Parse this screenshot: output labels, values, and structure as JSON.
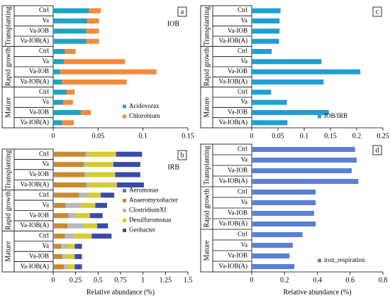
{
  "chart_data": [
    {
      "type": "bar",
      "stacked": true,
      "panel_label": "a",
      "annotation": "IOB",
      "groups": [
        {
          "name": "Transplanting",
          "categories": [
            "Ctrl",
            "Va",
            "Va-IOB",
            "Va-IOB(A)"
          ]
        },
        {
          "name": "Rapid growth",
          "categories": [
            "Ctrl",
            "Va",
            "Va-IOB",
            "Va-IOB(A)"
          ]
        },
        {
          "name": "Mature",
          "categories": [
            "Ctrl",
            "Va",
            "Va-IOB",
            "Va-IOB(A)"
          ]
        }
      ],
      "series": [
        {
          "name": "Acidovorax",
          "color": "#1fa2c4",
          "values": [
            0.04,
            0.038,
            0.037,
            0.037,
            0.013,
            0.012,
            0.008,
            0.01,
            0.015,
            0.011,
            0.031,
            0.01
          ]
        },
        {
          "name": "Chlorobium",
          "color": "#f58a3a",
          "values": [
            0.013,
            0.013,
            0.014,
            0.014,
            0.012,
            0.068,
            0.107,
            0.072,
            0.009,
            0.011,
            0.011,
            0.013
          ]
        }
      ],
      "xlim": [
        0,
        0.15
      ],
      "xticks": [
        0,
        0.05,
        0.1,
        0.15
      ],
      "legend": "lower right"
    },
    {
      "type": "bar",
      "stacked": true,
      "panel_label": "b",
      "annotation": "IRB",
      "x_label": "Relative abundance (%)",
      "groups": [
        {
          "name": "Transplanting",
          "categories": [
            "Ctrl",
            "Va",
            "Va-IOB",
            "Va-IOB(A)"
          ]
        },
        {
          "name": "Rapid growth",
          "categories": [
            "Ctrl",
            "Va",
            "Va-IOB",
            "Va-IOB(A)"
          ]
        },
        {
          "name": "Mature",
          "categories": [
            "Ctrl",
            "Va",
            "Va-IOB",
            "Va-IOB(A)"
          ]
        }
      ],
      "series": [
        {
          "name": "Aeromonas",
          "color": "#4d7fd0",
          "values": [
            0.01,
            0.01,
            0.01,
            0.01,
            0.01,
            0.01,
            0.01,
            0.01,
            0.01,
            0.01,
            0.01,
            0.01
          ]
        },
        {
          "name": "Anaeromyxobacter",
          "color": "#c98a2e",
          "values": [
            0.35,
            0.33,
            0.34,
            0.36,
            0.28,
            0.13,
            0.16,
            0.15,
            0.12,
            0.08,
            0.09,
            0.11
          ]
        },
        {
          "name": "ClostridiumXI",
          "color": "#b8b8b8",
          "values": [
            0.03,
            0.03,
            0.03,
            0.04,
            0.1,
            0.17,
            0.08,
            0.18,
            0.1,
            0.06,
            0.04,
            0.04
          ]
        },
        {
          "name": "Desulfuromonas",
          "color": "#d6cc2c",
          "values": [
            0.31,
            0.3,
            0.31,
            0.3,
            0.14,
            0.16,
            0.16,
            0.15,
            0.2,
            0.09,
            0.1,
            0.08
          ]
        },
        {
          "name": "Geobacter",
          "color": "#3a4aaa",
          "values": [
            0.29,
            0.3,
            0.28,
            0.3,
            0.15,
            0.13,
            0.14,
            0.12,
            0.22,
            0.08,
            0.08,
            0.08
          ]
        }
      ],
      "xlim": [
        0,
        1.5
      ],
      "xticks": [
        0,
        0.25,
        0.5,
        0.75,
        1,
        1.25,
        1.5
      ],
      "legend": "center right"
    },
    {
      "type": "bar",
      "stacked": false,
      "panel_label": "c",
      "groups": [
        {
          "name": "Transplanting",
          "categories": [
            "Ctrl",
            "Va",
            "Va-IOB",
            "Va-IOB(A)"
          ]
        },
        {
          "name": "Rapid growth",
          "categories": [
            "Ctrl",
            "Va",
            "Va-IOB",
            "Va-IOB(A)"
          ]
        },
        {
          "name": "Mature",
          "categories": [
            "Ctrl",
            "Va",
            "Va-IOB",
            "Va-IOB(A)"
          ]
        }
      ],
      "series": [
        {
          "name": "IOB/IRB",
          "color": "#1f9fd0",
          "values": [
            0.055,
            0.053,
            0.053,
            0.052,
            0.038,
            0.133,
            0.207,
            0.137,
            0.037,
            0.067,
            0.147,
            0.068
          ]
        }
      ],
      "xlim": [
        0,
        0.25
      ],
      "xticks": [
        0,
        0.05,
        0.1,
        0.15,
        0.2,
        0.25
      ],
      "legend": "lower right"
    },
    {
      "type": "bar",
      "stacked": false,
      "panel_label": "d",
      "x_label": "Relative abundance (%)",
      "groups": [
        {
          "name": "Transplanting",
          "categories": [
            "Ctrl",
            "Va",
            "Va-IOB",
            "Va-IOB(A)"
          ]
        },
        {
          "name": "Rapid growth",
          "categories": [
            "Ctrl",
            "Va",
            "Va-IOB",
            "Va-IOB(A)"
          ]
        },
        {
          "name": "Mature",
          "categories": [
            "Ctrl",
            "Va",
            "Va-IOB",
            "Va-IOB(A)"
          ]
        }
      ],
      "series": [
        {
          "name": "iron_respiration",
          "color": "#5b7fd6",
          "values": [
            0.63,
            0.64,
            0.61,
            0.65,
            0.39,
            0.39,
            0.38,
            0.39,
            0.31,
            0.25,
            0.23,
            0.26
          ]
        }
      ],
      "xlim": [
        0,
        0.8
      ],
      "xticks": [
        0,
        0.2,
        0.4,
        0.6,
        0.8
      ],
      "legend": "lower right"
    }
  ]
}
